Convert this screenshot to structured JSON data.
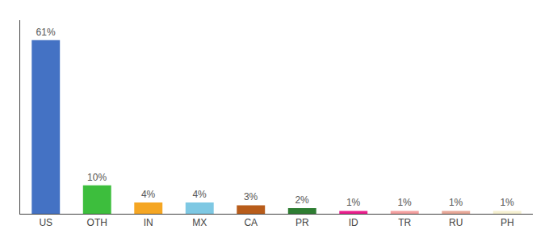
{
  "chart_data": {
    "type": "bar",
    "categories": [
      "US",
      "OTH",
      "IN",
      "MX",
      "CA",
      "PR",
      "ID",
      "TR",
      "RU",
      "PH"
    ],
    "values": [
      61,
      10,
      4,
      4,
      3,
      2,
      1,
      1,
      1,
      1
    ],
    "value_labels": [
      "61%",
      "10%",
      "4%",
      "4%",
      "3%",
      "2%",
      "1%",
      "1%",
      "1%",
      "1%"
    ],
    "colors": [
      "#4472C4",
      "#3DBE3D",
      "#F5A623",
      "#7EC8E3",
      "#B85C1A",
      "#2E7D32",
      "#E91E8C",
      "#F4A0A0",
      "#E8A898",
      "#F5F0D0"
    ],
    "data_labels": true,
    "ylim": [
      0,
      68
    ],
    "tick_labels": "x",
    "grid": false
  }
}
